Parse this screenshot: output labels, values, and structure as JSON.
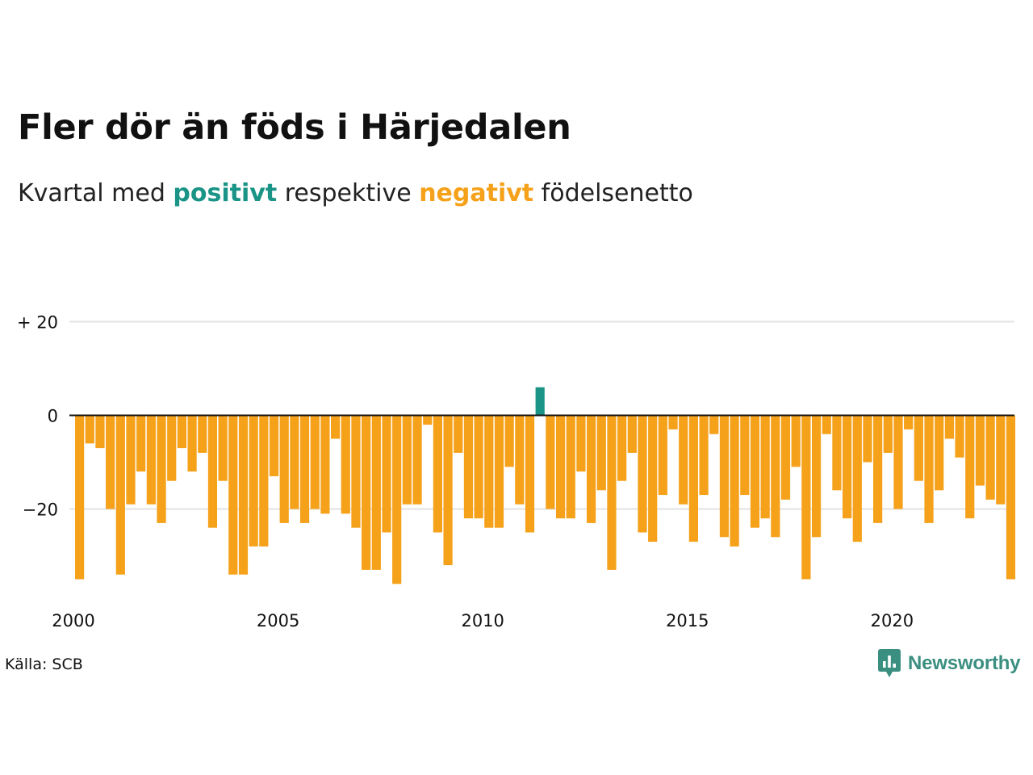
{
  "title": "Fler dör än föds i Härjedalen",
  "subtitle": {
    "before": "Kvartal med ",
    "positive_word": "positivt",
    "middle": " respektive ",
    "negative_word": "negativt",
    "after": " födelsenetto"
  },
  "source": "Källa: SCB",
  "brand": {
    "name": "Newsworthy",
    "color": "#3b8f80"
  },
  "colors": {
    "positive": "#1a9486",
    "negative": "#f5a11a",
    "grid": "#e2e2e2",
    "zero_line": "#111111"
  },
  "chart_data": {
    "type": "bar",
    "title": "Fler dör än föds i Härjedalen",
    "xlabel": "",
    "ylabel": "",
    "ylim": [
      -37,
      21
    ],
    "yticks": [
      {
        "value": 20,
        "label": "+ 20"
      },
      {
        "value": 0,
        "label": "0"
      },
      {
        "value": -20,
        "label": "−20"
      }
    ],
    "xlim": [
      2000,
      2023.25
    ],
    "xticks": [
      {
        "value": 2000,
        "label": "2000"
      },
      {
        "value": 2005,
        "label": "2005"
      },
      {
        "value": 2010,
        "label": "2010"
      },
      {
        "value": 2015,
        "label": "2015"
      },
      {
        "value": 2020,
        "label": "2020"
      }
    ],
    "grid": true,
    "legend": "none",
    "start_year": 2000,
    "periods_per_year": 4,
    "values": [
      -35,
      -6,
      -7,
      -20,
      -34,
      -19,
      -12,
      -19,
      -23,
      -14,
      -7,
      -12,
      -8,
      -24,
      -14,
      -34,
      -34,
      -28,
      -28,
      -13,
      -23,
      -20,
      -23,
      -20,
      -21,
      -5,
      -21,
      -24,
      -33,
      -33,
      -25,
      -36,
      -19,
      -19,
      -2,
      -25,
      -32,
      -8,
      -22,
      -22,
      -24,
      -24,
      -11,
      -19,
      -25,
      6,
      -20,
      -22,
      -22,
      -12,
      -23,
      -16,
      -33,
      -14,
      -8,
      -25,
      -27,
      -17,
      -3,
      -19,
      -27,
      -17,
      -4,
      -26,
      -28,
      -17,
      -24,
      -22,
      -26,
      -18,
      -11,
      -35,
      -26,
      -4,
      -16,
      -22,
      -27,
      -10,
      -23,
      -8,
      -20,
      -3,
      -14,
      -23,
      -16,
      -5,
      -9,
      -22,
      -15,
      -18,
      -19,
      -35
    ]
  }
}
